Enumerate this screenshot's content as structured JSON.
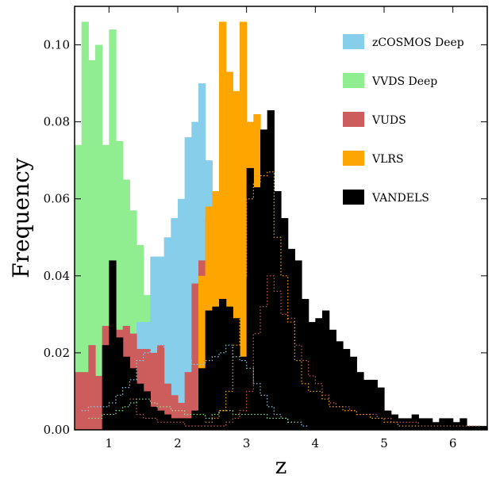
{
  "chart_data": {
    "type": "bar",
    "xlabel": "z",
    "ylabel": "Frequency",
    "xlim": [
      0.5,
      6.5
    ],
    "ylim": [
      0.0,
      0.11
    ],
    "xticks": [
      1,
      2,
      3,
      4,
      5,
      6
    ],
    "yticks": [
      0.0,
      0.02,
      0.04,
      0.06,
      0.08,
      0.1
    ],
    "ytick_labels": [
      "0.00",
      "0.02",
      "0.04",
      "0.06",
      "0.08",
      "0.10"
    ],
    "legend": {
      "placement": "top-right",
      "entries": [
        "zCOSMOS Deep",
        "VVDS Deep",
        "VUDS",
        "VLRS",
        "VANDELS"
      ]
    },
    "grid": false,
    "bin_width": 0.1,
    "series": [
      {
        "name": "VVDS Deep",
        "color": "#90ee90",
        "x": [
          0.5,
          0.6,
          0.7,
          0.8,
          0.9,
          1.0,
          1.1,
          1.2,
          1.3,
          1.4,
          1.5,
          1.6,
          1.7,
          1.8,
          1.9,
          2.0,
          2.1,
          2.2
        ],
        "values": [
          0.074,
          0.106,
          0.096,
          0.1,
          0.074,
          0.104,
          0.075,
          0.065,
          0.057,
          0.048,
          0.035,
          0.03,
          0.015,
          0.007,
          0.005,
          0.004,
          0.003,
          0.002
        ]
      },
      {
        "name": "zCOSMOS Deep",
        "color": "#87ceeb",
        "x": [
          1.4,
          1.5,
          1.6,
          1.7,
          1.8,
          1.9,
          2.0,
          2.1,
          2.2,
          2.3,
          2.4
        ],
        "values": [
          0.028,
          0.028,
          0.045,
          0.045,
          0.05,
          0.055,
          0.06,
          0.076,
          0.08,
          0.09,
          0.07
        ]
      },
      {
        "name": "VUDS",
        "color": "#cd5c5c",
        "x": [
          0.5,
          0.6,
          0.7,
          0.8,
          0.9,
          1.0,
          1.1,
          1.2,
          1.3,
          1.4,
          1.5,
          1.6,
          1.7,
          1.8,
          1.9,
          2.0,
          2.1,
          2.2,
          2.3,
          2.4,
          2.5,
          2.6,
          2.7,
          2.8,
          2.9,
          3.0,
          3.1,
          3.2,
          3.3,
          3.4,
          3.5,
          3.6,
          3.7,
          3.8,
          3.9,
          4.0,
          4.1,
          4.2,
          4.3,
          4.4,
          4.5,
          4.6,
          4.7,
          4.8,
          4.9,
          5.0,
          5.1
        ],
        "values": [
          0.015,
          0.015,
          0.022,
          0.014,
          0.027,
          0.027,
          0.026,
          0.027,
          0.025,
          0.021,
          0.021,
          0.02,
          0.022,
          0.012,
          0.009,
          0.007,
          0.015,
          0.038,
          0.044,
          0.055,
          0.057,
          0.052,
          0.046,
          0.04,
          0.042,
          0.038,
          0.032,
          0.03,
          0.022,
          0.02,
          0.016,
          0.014,
          0.011,
          0.008,
          0.007,
          0.006,
          0.006,
          0.005,
          0.005,
          0.004,
          0.004,
          0.004,
          0.003,
          0.003,
          0.003,
          0.005,
          0.003
        ]
      },
      {
        "name": "VLRS",
        "color": "#ffa500",
        "x": [
          2.3,
          2.4,
          2.5,
          2.6,
          2.7,
          2.8,
          2.9,
          3.0,
          3.1
        ],
        "values": [
          0.04,
          0.058,
          0.062,
          0.106,
          0.093,
          0.088,
          0.106,
          0.08,
          0.082
        ]
      },
      {
        "name": "VANDELS",
        "color": "#000000",
        "x": [
          0.9,
          1.0,
          1.1,
          1.2,
          1.3,
          1.4,
          1.5,
          1.6,
          1.7,
          1.8,
          1.9,
          2.0,
          2.1,
          2.2,
          2.3,
          2.4,
          2.5,
          2.6,
          2.7,
          2.8,
          2.9,
          3.0,
          3.1,
          3.2,
          3.3,
          3.4,
          3.5,
          3.6,
          3.7,
          3.8,
          3.9,
          4.0,
          4.1,
          4.2,
          4.3,
          4.4,
          4.5,
          4.6,
          4.7,
          4.8,
          4.9,
          5.0,
          5.1,
          5.2,
          5.3,
          5.4,
          5.5,
          5.6,
          5.7,
          5.8,
          5.9,
          6.0,
          6.1,
          6.2,
          6.3,
          6.4
        ],
        "values": [
          0.022,
          0.044,
          0.024,
          0.019,
          0.016,
          0.012,
          0.01,
          0.006,
          0.005,
          0.004,
          0.003,
          0.003,
          0.003,
          0.005,
          0.016,
          0.031,
          0.032,
          0.034,
          0.032,
          0.029,
          0.019,
          0.068,
          0.063,
          0.078,
          0.083,
          0.062,
          0.055,
          0.047,
          0.044,
          0.034,
          0.028,
          0.029,
          0.031,
          0.026,
          0.023,
          0.021,
          0.019,
          0.015,
          0.013,
          0.013,
          0.011,
          0.005,
          0.004,
          0.003,
          0.003,
          0.004,
          0.003,
          0.003,
          0.002,
          0.003,
          0.003,
          0.002,
          0.003,
          0.001,
          0.001,
          0.001
        ]
      }
    ],
    "outlines": [
      {
        "color": "#cd5c5c",
        "x": [
          1.3,
          1.4,
          1.5,
          1.6,
          1.7,
          1.8,
          1.9,
          2.0,
          2.1,
          2.2,
          2.3,
          2.4,
          2.5,
          2.6,
          2.7,
          2.8,
          2.9,
          3.0,
          3.1,
          3.2,
          3.3,
          3.4,
          3.5,
          3.6,
          3.7,
          3.8,
          3.9,
          4.0,
          4.1,
          4.2,
          4.3,
          4.4,
          4.5,
          4.6,
          4.7,
          4.8,
          4.9,
          5.0,
          5.1,
          5.2,
          5.3,
          5.4,
          5.5,
          5.6,
          5.7,
          5.8,
          5.9,
          6.0,
          6.1,
          6.2,
          6.3
        ],
        "values": [
          0.008,
          0.004,
          0.003,
          0.003,
          0.002,
          0.002,
          0.002,
          0.002,
          0.001,
          0.001,
          0.001,
          0.001,
          0.001,
          0.001,
          0.002,
          0.003,
          0.005,
          0.01,
          0.025,
          0.032,
          0.04,
          0.036,
          0.03,
          0.029,
          0.022,
          0.018,
          0.014,
          0.012,
          0.009,
          0.007,
          0.006,
          0.006,
          0.005,
          0.004,
          0.004,
          0.004,
          0.003,
          0.003,
          0.002,
          0.002,
          0.002,
          0.002,
          0.001,
          0.001,
          0.001,
          0.001,
          0.001,
          0.001,
          0.001,
          0.001,
          0.001
        ]
      },
      {
        "color": "#ffa500",
        "x": [
          2.4,
          2.5,
          2.6,
          2.7,
          2.8,
          2.9,
          3.0,
          3.1,
          3.2,
          3.3,
          3.4,
          3.5,
          3.6,
          3.7,
          3.8,
          3.9,
          4.0,
          4.1,
          4.2,
          4.3,
          4.4,
          4.5,
          4.6,
          4.7,
          4.8,
          4.9,
          5.0,
          5.1,
          5.2,
          5.3,
          5.4
        ],
        "values": [
          0.002,
          0.003,
          0.005,
          0.01,
          0.022,
          0.04,
          0.06,
          0.064,
          0.066,
          0.067,
          0.05,
          0.04,
          0.028,
          0.018,
          0.012,
          0.01,
          0.01,
          0.008,
          0.006,
          0.006,
          0.005,
          0.005,
          0.004,
          0.004,
          0.003,
          0.003,
          0.002,
          0.002,
          0.001,
          0.001,
          0.001
        ]
      },
      {
        "color": "#87ceeb",
        "x": [
          0.6,
          0.7,
          0.8,
          0.9,
          1.0,
          1.1,
          1.2,
          1.3,
          1.4,
          1.5,
          1.6,
          1.7,
          1.8,
          1.9,
          2.0,
          2.1,
          2.2,
          2.3,
          2.4,
          2.5,
          2.6,
          2.7,
          2.8,
          2.9,
          3.0,
          3.1,
          3.2,
          3.3,
          3.4,
          3.5,
          3.6,
          3.7,
          3.8
        ],
        "values": [
          0.005,
          0.006,
          0.006,
          0.006,
          0.007,
          0.009,
          0.011,
          0.013,
          0.018,
          0.02,
          0.021,
          0.022,
          0.021,
          0.019,
          0.018,
          0.018,
          0.017,
          0.017,
          0.018,
          0.019,
          0.02,
          0.022,
          0.019,
          0.018,
          0.016,
          0.012,
          0.009,
          0.006,
          0.004,
          0.003,
          0.002,
          0.002,
          0.001
        ]
      },
      {
        "color": "#90ee90",
        "x": [
          0.7,
          0.8,
          0.9,
          1.0,
          1.1,
          1.2,
          1.3,
          1.4,
          1.5,
          1.6,
          1.7,
          1.8,
          1.9,
          2.0,
          2.1,
          2.2,
          2.3,
          2.4,
          2.5,
          2.6,
          2.7,
          2.8,
          2.9,
          3.0,
          3.1,
          3.2,
          3.3,
          3.4,
          3.5,
          3.6
        ],
        "values": [
          0.003,
          0.003,
          0.004,
          0.004,
          0.005,
          0.006,
          0.007,
          0.008,
          0.008,
          0.007,
          0.006,
          0.006,
          0.005,
          0.005,
          0.004,
          0.004,
          0.004,
          0.003,
          0.004,
          0.005,
          0.005,
          0.004,
          0.004,
          0.004,
          0.004,
          0.004,
          0.003,
          0.003,
          0.003,
          0.002
        ]
      }
    ]
  }
}
